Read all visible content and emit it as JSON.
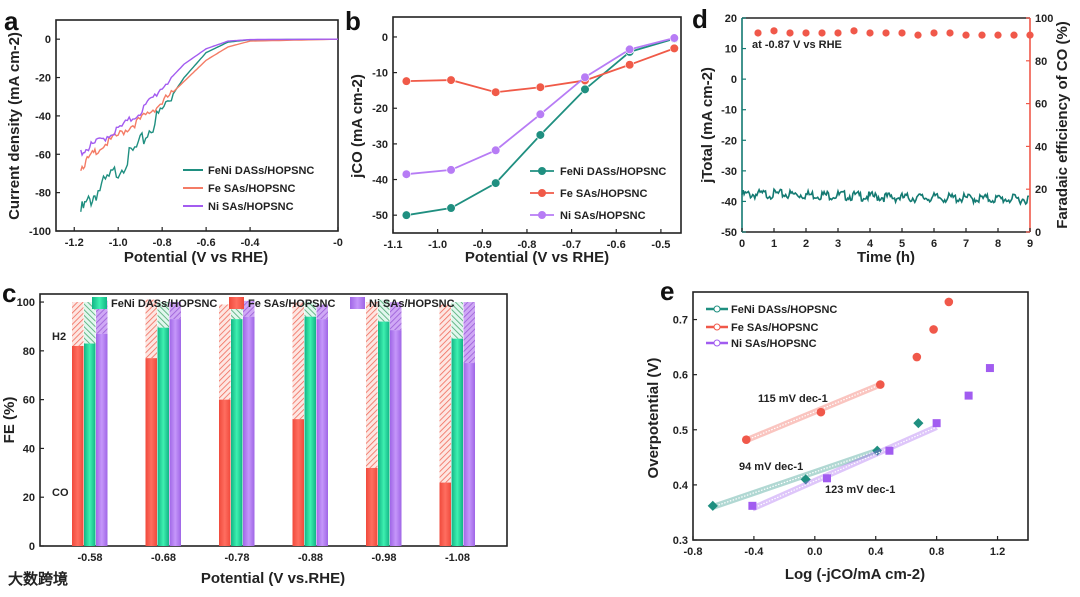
{
  "chart_data": [
    {
      "panel": "a",
      "type": "line",
      "xlabel": "Potential (V vs RHE)",
      "ylabel": "Current density (mA cm-2)",
      "xlim": [
        -1.283,
        0
      ],
      "ylim": [
        -100,
        10
      ],
      "xtick_labels": [
        "-1.2",
        "-1.0",
        "-0.8",
        "-0.6",
        "-0.4",
        "-0"
      ],
      "ytick_labels": [
        "0",
        "-20",
        "-40",
        "-60",
        "-80",
        "-100"
      ],
      "legend": "bottom-right",
      "series": [
        {
          "name": "FeNi DASs/HOPSNC",
          "color": "#1f8f80",
          "x": [
            -1.17,
            -1.1,
            -1.0,
            -0.9,
            -0.8,
            -0.7,
            -0.6,
            -0.5,
            -0.4,
            0
          ],
          "y": [
            -90,
            -80,
            -68,
            -55,
            -37,
            -20,
            -7,
            -1.5,
            -0.3,
            0
          ]
        },
        {
          "name": "Fe SAs/HOPSNC",
          "color": "#f47c66",
          "x": [
            -1.17,
            -1.1,
            -1.0,
            -0.9,
            -0.8,
            -0.7,
            -0.6,
            -0.5,
            -0.4,
            0
          ],
          "y": [
            -67,
            -58,
            -50,
            -42,
            -33,
            -22,
            -11,
            -4,
            -1,
            0
          ]
        },
        {
          "name": "Ni SAs/HOPSNC",
          "color": "#a35cf0",
          "x": [
            -1.17,
            -1.1,
            -1.0,
            -0.9,
            -0.8,
            -0.7,
            -0.6,
            -0.5,
            -0.4,
            0
          ],
          "y": [
            -59,
            -54,
            -47,
            -38,
            -25,
            -13,
            -5,
            -1,
            -0.2,
            0
          ]
        }
      ]
    },
    {
      "panel": "b",
      "type": "line",
      "xlabel": "Potential (V vs RHE)",
      "ylabel": "jCO (mA cm-2)",
      "xlim": [
        -1.1,
        -0.455
      ],
      "ylim": [
        -55,
        5.6
      ],
      "xtick_labels": [
        "-1.1",
        "-1.0",
        "-0.9",
        "-0.8",
        "-0.7",
        "-0.6",
        "-0.5"
      ],
      "ytick_labels": [
        "0",
        "-10",
        "-20",
        "-30",
        "-40",
        "-50"
      ],
      "legend": "bottom-right",
      "x": [
        -1.07,
        -0.97,
        -0.87,
        -0.77,
        -0.67,
        -0.57,
        -0.47
      ],
      "series": [
        {
          "name": "FeNi DASs/HOPSNC",
          "color": "#1f8f80",
          "values": [
            -50,
            -48,
            -41,
            -27.5,
            -14.7,
            -4.2,
            -0.5
          ]
        },
        {
          "name": "Fe SAs/HOPSNC",
          "color": "#f05a48",
          "values": [
            -12.4,
            -12.1,
            -15.5,
            -14.1,
            -12.2,
            -7.8,
            -3.2
          ]
        },
        {
          "name": "Ni SAs/HOPSNC",
          "color": "#b77cf5",
          "values": [
            -38.5,
            -37.3,
            -31.8,
            -21.7,
            -11.3,
            -3.5,
            -0.3
          ]
        }
      ]
    },
    {
      "panel": "c",
      "type": "bar",
      "xlabel": "Potential (V vs.RHE)",
      "ylabel": "FE (%)",
      "ylim": [
        0,
        103.3
      ],
      "ytick_labels": [
        "0",
        "20",
        "40",
        "60",
        "80",
        "100"
      ],
      "categories": [
        "-0.58",
        "-0.68",
        "-0.78",
        "-0.88",
        "-0.98",
        "-1.08"
      ],
      "annotations": [
        "H2",
        "CO"
      ],
      "legend": "top",
      "series": [
        {
          "name": "Fe SAs/HOPSNC",
          "color": "#f45b4c",
          "co": [
            82,
            77,
            60,
            52,
            32,
            26
          ],
          "h2": [
            18,
            24,
            39,
            48,
            68,
            73
          ]
        },
        {
          "name": "FeNi DASs/HOPSNC",
          "color": "#22d69c",
          "co": [
            83,
            89.5,
            93,
            94,
            92,
            85
          ],
          "h2": [
            17,
            10.5,
            6.5,
            6,
            9,
            15
          ]
        },
        {
          "name": "Ni SAs/HOPSNC",
          "color": "#b07bf0",
          "co": [
            87,
            93,
            94,
            93,
            88.5,
            75
          ],
          "h2": [
            13.5,
            7,
            6.5,
            6,
            11.5,
            25
          ]
        }
      ],
      "legend_order": [
        1,
        0,
        2
      ]
    },
    {
      "panel": "d",
      "type": "line",
      "xlabel": "Time (h)",
      "ylabel": "jTotal (mA cm-2)",
      "ylabel_right": "Faradaic efficiency of CO (%)",
      "annotation": "at -0.87 V vs RHE",
      "xlim": [
        0,
        9
      ],
      "ylim": [
        -50,
        20
      ],
      "ylim_right": [
        0,
        100
      ],
      "xtick_labels": [
        "0",
        "1",
        "2",
        "3",
        "4",
        "5",
        "6",
        "7",
        "8",
        "9"
      ],
      "ytick_labels": [
        "20",
        "10",
        "0",
        "-10",
        "-20",
        "-30",
        "-40",
        "-50"
      ],
      "ytick_labels_right": [
        "100",
        "80",
        "60",
        "40",
        "20",
        "0"
      ],
      "current": {
        "color": "#137a72",
        "x": [
          0,
          1,
          2,
          3,
          4,
          5,
          6,
          7,
          8,
          9
        ],
        "y": [
          -37,
          -36.8,
          -37,
          -37.2,
          -37.6,
          -38,
          -38,
          -38.2,
          -38.4,
          -38.5
        ]
      },
      "fe": {
        "color": "#f0584a",
        "x": [
          0.5,
          1,
          1.5,
          2,
          2.5,
          3,
          3.5,
          4,
          4.5,
          5,
          5.5,
          6,
          6.5,
          7,
          7.5,
          8,
          8.5,
          9
        ],
        "y": [
          93,
          94,
          93,
          93,
          93,
          93,
          94,
          93,
          93,
          93,
          92,
          93,
          93,
          92,
          92,
          92,
          92,
          92
        ]
      }
    },
    {
      "panel": "e",
      "type": "scatter",
      "xlabel": "Log (-jCO/mA cm-2)",
      "ylabel": "Overpotential (V)",
      "xlim": [
        -0.8,
        1.4
      ],
      "ylim": [
        0.3,
        0.75
      ],
      "xtick_labels": [
        "-0.8",
        "-0.4",
        "0.0",
        "0.4",
        "0.8",
        "1.2"
      ],
      "ytick_labels": [
        "0.3",
        "0.4",
        "0.5",
        "0.6",
        "0.7"
      ],
      "legend": "top-left",
      "annotations": [
        "115 mV dec-1",
        "94 mV dec-1",
        "123 mV dec-1"
      ],
      "series": [
        {
          "name": "FeNi DASs/HOPSNC",
          "color": "#1f8f80",
          "marker": "diamond",
          "x": [
            -0.67,
            -0.06,
            0.41,
            0.68
          ],
          "y": [
            0.362,
            0.41,
            0.462,
            0.512
          ],
          "fit": {
            "x": [
              -0.67,
              0.41
            ],
            "y": [
              0.36,
              0.462
            ],
            "slope_label": "94 mV dec-1"
          }
        },
        {
          "name": "Fe SAs/HOPSNC",
          "color": "#f0584a",
          "marker": "circle",
          "x": [
            -0.45,
            0.04,
            0.43,
            0.67,
            0.78,
            0.88
          ],
          "y": [
            0.482,
            0.532,
            0.582,
            0.632,
            0.682,
            0.732
          ],
          "fit": {
            "x": [
              -0.45,
              0.43
            ],
            "y": [
              0.481,
              0.582
            ],
            "slope_label": "115 mV dec-1"
          }
        },
        {
          "name": "Ni SAs/HOPSNC",
          "color": "#a15cf0",
          "marker": "square",
          "x": [
            -0.41,
            0.08,
            0.49,
            0.8,
            1.01,
            1.15
          ],
          "y": [
            0.362,
            0.412,
            0.462,
            0.512,
            0.562,
            0.612
          ],
          "fit": {
            "x": [
              -0.41,
              0.8
            ],
            "y": [
              0.357,
              0.505
            ],
            "slope_label": "123 mV dec-1"
          }
        }
      ]
    }
  ],
  "watermark": "大数跨境"
}
